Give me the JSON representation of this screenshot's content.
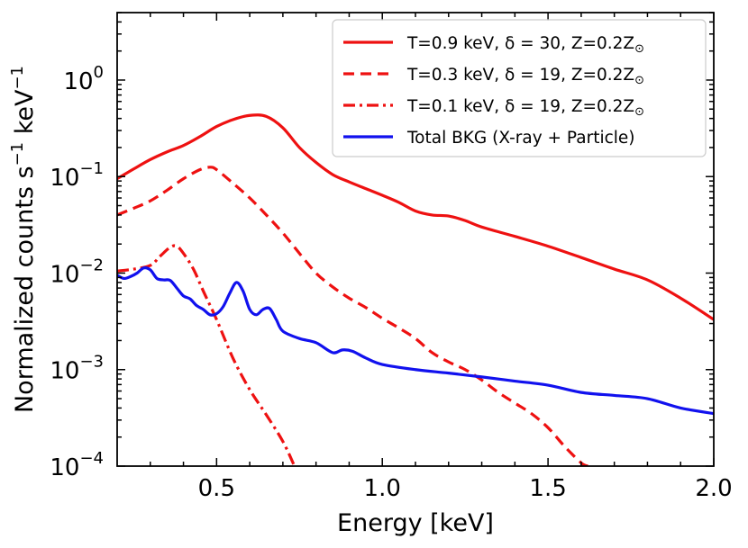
{
  "chart_data": {
    "type": "line",
    "xlabel": "Energy [keV]",
    "ylabel": "Normalized  counts s⁻¹ keV⁻¹",
    "ylabel_parts": {
      "main": "Normalized  counts s",
      "exp1": "−1",
      "mid": " keV",
      "exp2": "−1"
    },
    "xlim": [
      0.2,
      2.0
    ],
    "ylim": [
      0.0001,
      5
    ],
    "yscale": "log",
    "xticks": [
      {
        "value": 0.5,
        "label": "0.5"
      },
      {
        "value": 1.0,
        "label": "1.0"
      },
      {
        "value": 1.5,
        "label": "1.5"
      },
      {
        "value": 2.0,
        "label": "2.0"
      }
    ],
    "yticks": [
      {
        "value": 0.0001,
        "base": "10",
        "exp": "−4"
      },
      {
        "value": 0.001,
        "base": "10",
        "exp": "−3"
      },
      {
        "value": 0.01,
        "base": "10",
        "exp": "−2"
      },
      {
        "value": 0.1,
        "base": "10",
        "exp": "−1"
      },
      {
        "value": 1,
        "base": "10",
        "exp": "0"
      }
    ],
    "legend_position": "top-right",
    "series": [
      {
        "name": "T=0.9 keV, δ = 30, Z=0.2Z⊙",
        "label_parts": {
          "text": "T=0.9 keV, δ = 30, Z=0.2Z",
          "sub": "⊙"
        },
        "color": "#ee1111",
        "style": "solid",
        "x": [
          0.2,
          0.25,
          0.3,
          0.35,
          0.4,
          0.45,
          0.5,
          0.55,
          0.6,
          0.65,
          0.7,
          0.75,
          0.8,
          0.85,
          0.9,
          0.95,
          1.0,
          1.05,
          1.1,
          1.15,
          1.2,
          1.25,
          1.3,
          1.4,
          1.5,
          1.6,
          1.7,
          1.8,
          1.9,
          2.0
        ],
        "y": [
          0.095,
          0.12,
          0.15,
          0.18,
          0.21,
          0.26,
          0.33,
          0.39,
          0.43,
          0.42,
          0.32,
          0.2,
          0.14,
          0.105,
          0.088,
          0.075,
          0.064,
          0.054,
          0.044,
          0.04,
          0.039,
          0.035,
          0.03,
          0.024,
          0.019,
          0.0145,
          0.011,
          0.0085,
          0.0055,
          0.0033
        ]
      },
      {
        "name": "T=0.3 keV, δ = 19, Z=0.2Z⊙",
        "label_parts": {
          "text": "T=0.3 keV, δ = 19, Z=0.2Z",
          "sub": "⊙"
        },
        "color": "#ee1111",
        "style": "dashed",
        "x": [
          0.2,
          0.25,
          0.3,
          0.35,
          0.4,
          0.45,
          0.48,
          0.5,
          0.55,
          0.6,
          0.65,
          0.7,
          0.75,
          0.8,
          0.85,
          0.9,
          0.95,
          1.0,
          1.05,
          1.1,
          1.15,
          1.2,
          1.25,
          1.3,
          1.35,
          1.4,
          1.45,
          1.5,
          1.55,
          1.6,
          1.62
        ],
        "y": [
          0.04,
          0.047,
          0.056,
          0.072,
          0.095,
          0.118,
          0.125,
          0.118,
          0.085,
          0.06,
          0.04,
          0.026,
          0.016,
          0.01,
          0.0072,
          0.0055,
          0.0044,
          0.0034,
          0.0027,
          0.0021,
          0.0015,
          0.0012,
          0.001,
          0.00078,
          0.00058,
          0.00045,
          0.00035,
          0.00025,
          0.00016,
          0.000108,
          0.0001
        ]
      },
      {
        "name": "T=0.1 keV, δ = 19, Z=0.2Z⊙",
        "label_parts": {
          "text": "T=0.1 keV, δ = 19, Z=0.2Z",
          "sub": "⊙"
        },
        "color": "#ee1111",
        "style": "dashdot",
        "x": [
          0.2,
          0.25,
          0.3,
          0.33,
          0.36,
          0.38,
          0.4,
          0.43,
          0.46,
          0.5,
          0.55,
          0.6,
          0.65,
          0.7,
          0.735
        ],
        "y": [
          0.0105,
          0.011,
          0.012,
          0.015,
          0.0185,
          0.019,
          0.016,
          0.011,
          0.0065,
          0.0033,
          0.0013,
          0.00062,
          0.00034,
          0.00018,
          0.0001
        ]
      },
      {
        "name": "Total BKG (X-ray + Particle)",
        "label_parts": {
          "text": "Total BKG (X-ray + Particle)",
          "sub": ""
        },
        "color": "#1111ee",
        "style": "solid",
        "x": [
          0.2,
          0.22,
          0.24,
          0.26,
          0.28,
          0.3,
          0.32,
          0.34,
          0.36,
          0.38,
          0.4,
          0.42,
          0.44,
          0.46,
          0.48,
          0.5,
          0.52,
          0.54,
          0.56,
          0.58,
          0.6,
          0.62,
          0.64,
          0.66,
          0.68,
          0.7,
          0.75,
          0.8,
          0.85,
          0.88,
          0.91,
          0.95,
          1.0,
          1.1,
          1.2,
          1.3,
          1.4,
          1.5,
          1.6,
          1.7,
          1.8,
          1.9,
          2.0
        ],
        "y": [
          0.0095,
          0.0088,
          0.0092,
          0.01,
          0.0113,
          0.0108,
          0.0088,
          0.0085,
          0.0084,
          0.007,
          0.0058,
          0.0054,
          0.0046,
          0.0042,
          0.0037,
          0.0038,
          0.0045,
          0.0062,
          0.008,
          0.0065,
          0.0042,
          0.0037,
          0.0042,
          0.0043,
          0.0033,
          0.0025,
          0.0021,
          0.0019,
          0.0015,
          0.0016,
          0.00155,
          0.00132,
          0.00113,
          0.001,
          0.00092,
          0.00084,
          0.00076,
          0.00069,
          0.00058,
          0.00054,
          0.0005,
          0.0004,
          0.00035
        ]
      }
    ]
  }
}
